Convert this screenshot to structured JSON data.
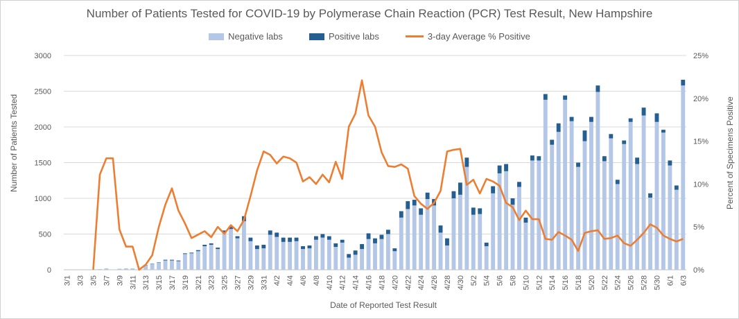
{
  "chart_data": {
    "type": "bar",
    "title": "Number of Patients Tested for COVID-19 by Polymerase Chain Reaction (PCR) Test Result, New Hampshire",
    "xlabel": "Date of Reported Test Result",
    "ylabel": "Number of Patients Tested",
    "y2label": "Percent of Specimens Positive",
    "ylim": [
      0,
      3000
    ],
    "y2lim": [
      0,
      25
    ],
    "yticks": [
      "0",
      "500",
      "1000",
      "1500",
      "2000",
      "2500",
      "3000"
    ],
    "y2ticks": [
      "0%",
      "5%",
      "10%",
      "15%",
      "20%",
      "25%"
    ],
    "legend_position": "top",
    "grid": true,
    "colors": {
      "negative": "#b4c7e7",
      "positive": "#255e91",
      "line": "#ed7d31"
    },
    "categories": [
      "3/1",
      "3/2",
      "3/3",
      "3/4",
      "3/5",
      "3/6",
      "3/7",
      "3/8",
      "3/9",
      "3/10",
      "3/11",
      "3/12",
      "3/13",
      "3/14",
      "3/15",
      "3/16",
      "3/17",
      "3/18",
      "3/19",
      "3/20",
      "3/21",
      "3/22",
      "3/23",
      "3/24",
      "3/25",
      "3/26",
      "3/27",
      "3/28",
      "3/29",
      "3/30",
      "3/31",
      "4/1",
      "4/2",
      "4/3",
      "4/4",
      "4/5",
      "4/6",
      "4/7",
      "4/8",
      "4/9",
      "4/10",
      "4/11",
      "4/12",
      "4/13",
      "4/14",
      "4/15",
      "4/16",
      "4/17",
      "4/18",
      "4/19",
      "4/20",
      "4/21",
      "4/22",
      "4/23",
      "4/24",
      "4/25",
      "4/26",
      "4/27",
      "4/28",
      "4/29",
      "4/30",
      "5/1",
      "5/2",
      "5/3",
      "5/4",
      "5/5",
      "5/6",
      "5/7",
      "5/8",
      "5/9",
      "5/10",
      "5/11",
      "5/12",
      "5/13",
      "5/14",
      "5/15",
      "5/16",
      "5/17",
      "5/18",
      "5/19",
      "5/20",
      "5/21",
      "5/22",
      "5/23",
      "5/24",
      "5/25",
      "5/26",
      "5/27",
      "5/28",
      "5/29",
      "5/30",
      "5/31",
      "6/1",
      "6/2",
      "6/3"
    ],
    "xtick_labels": [
      "3/1",
      "3/3",
      "3/5",
      "3/7",
      "3/9",
      "3/11",
      "3/13",
      "3/15",
      "3/17",
      "3/19",
      "3/21",
      "3/23",
      "3/25",
      "3/27",
      "3/29",
      "3/31",
      "4/2",
      "4/4",
      "4/6",
      "4/8",
      "4/10",
      "4/12",
      "4/14",
      "4/16",
      "4/18",
      "4/20",
      "4/22",
      "4/24",
      "4/26",
      "4/28",
      "4/30",
      "5/2",
      "5/4",
      "5/6",
      "5/8",
      "5/10",
      "5/12",
      "5/14",
      "5/16",
      "5/18",
      "5/20",
      "5/22",
      "5/24",
      "5/26",
      "5/28",
      "5/30",
      "6/1",
      "6/3"
    ],
    "series": [
      {
        "name": "Negative labs",
        "type": "bar",
        "values": [
          0,
          0,
          0,
          0,
          5,
          10,
          20,
          5,
          15,
          20,
          20,
          5,
          60,
          80,
          100,
          130,
          130,
          120,
          220,
          230,
          260,
          330,
          350,
          290,
          520,
          570,
          440,
          680,
          400,
          290,
          300,
          490,
          460,
          390,
          390,
          400,
          290,
          300,
          420,
          450,
          420,
          320,
          380,
          170,
          210,
          290,
          430,
          370,
          430,
          500,
          260,
          730,
          850,
          900,
          770,
          990,
          900,
          520,
          340,
          1000,
          1050,
          1440,
          770,
          780,
          330,
          1070,
          1350,
          1380,
          910,
          1160,
          660,
          1530,
          1530,
          2380,
          1750,
          1930,
          2380,
          2080,
          1440,
          1800,
          2070,
          2490,
          1520,
          1840,
          1200,
          1760,
          2070,
          1480,
          2160,
          1010,
          2070,
          1920,
          1460,
          1120,
          2580
        ]
      },
      {
        "name": "Positive labs",
        "type": "bar",
        "values": [
          0,
          0,
          0,
          0,
          0,
          0,
          0,
          0,
          0,
          0,
          0,
          0,
          5,
          5,
          5,
          10,
          10,
          10,
          10,
          10,
          15,
          20,
          20,
          20,
          30,
          30,
          30,
          70,
          50,
          50,
          50,
          60,
          60,
          60,
          60,
          50,
          40,
          40,
          50,
          50,
          50,
          50,
          40,
          50,
          60,
          70,
          80,
          70,
          60,
          60,
          40,
          90,
          110,
          80,
          90,
          90,
          90,
          100,
          100,
          100,
          170,
          130,
          100,
          80,
          50,
          100,
          110,
          100,
          90,
          70,
          70,
          70,
          60,
          80,
          70,
          120,
          60,
          60,
          60,
          150,
          70,
          90,
          70,
          60,
          60,
          50,
          50,
          90,
          110,
          60,
          120,
          40,
          70,
          60,
          80
        ]
      },
      {
        "name": "3-day Average % Positive",
        "type": "line",
        "axis": "right",
        "values": [
          null,
          null,
          null,
          null,
          0,
          11.1,
          13.0,
          13.0,
          4.7,
          2.7,
          2.7,
          0,
          0.6,
          1.7,
          5,
          7.6,
          9.5,
          6.9,
          5.4,
          3.7,
          4.1,
          4.5,
          3.8,
          5,
          4.2,
          5.2,
          4.5,
          5.8,
          8.6,
          11.6,
          13.8,
          13.4,
          12.4,
          13.2,
          13.0,
          12.5,
          10.3,
          10.8,
          10,
          11.1,
          10.2,
          12.6,
          10.6,
          16.7,
          18.2,
          22.1,
          18.0,
          16.7,
          13.7,
          12.1,
          12.0,
          12.3,
          11.8,
          8.6,
          7.7,
          7.1,
          7.8,
          9.2,
          13.8,
          14.0,
          14.1,
          9.9,
          10.5,
          8.9,
          10.6,
          10.3,
          9.8,
          7.8,
          7.3,
          5.8,
          6.9,
          5.9,
          5.9,
          3.6,
          3.5,
          4.4,
          4.0,
          3.5,
          2.2,
          4.3,
          4.5,
          4.6,
          3.6,
          3.7,
          4.0,
          3.1,
          2.8,
          3.5,
          4.3,
          5.3,
          4.9,
          4.0,
          3.6,
          3.3,
          3.6
        ]
      }
    ]
  }
}
